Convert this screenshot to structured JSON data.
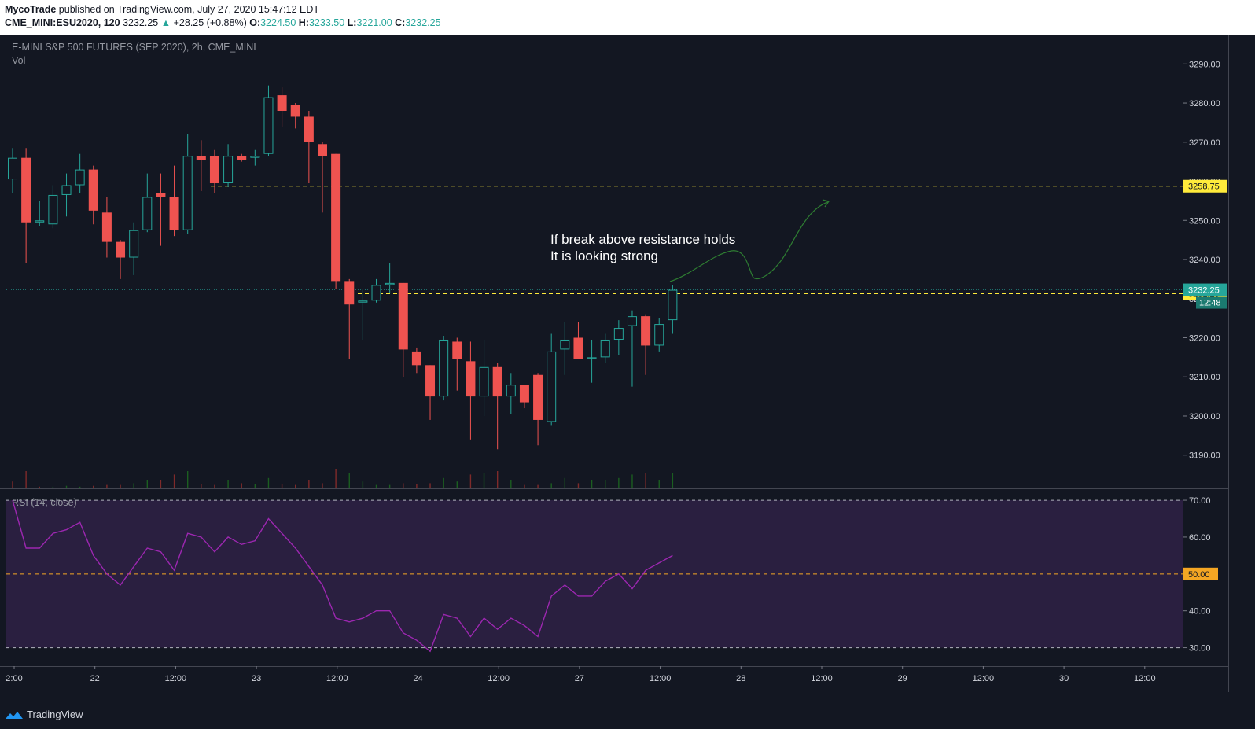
{
  "header": {
    "author": "MycoTrade",
    "published_text": "published on TradingView.com, July 27, 2020 15:47:12 EDT",
    "symbol": "CME_MINI:ESU2020, 120",
    "last": "3232.25",
    "change_arrow": "▲",
    "change": "+28.25 (+0.88%)",
    "o_label": "O:",
    "o": "3224.50",
    "h_label": "H:",
    "h": "3233.50",
    "l_label": "L:",
    "l": "3221.00",
    "c_label": "C:",
    "c": "3232.25"
  },
  "footer": {
    "brand": "TradingView"
  },
  "colors": {
    "background": "#131722",
    "up": "#26a69a",
    "down": "#ef5350",
    "rsi_line": "#9c27b0",
    "rsi_band": "#2a1f40",
    "resistance": "#ffeb3b",
    "annotation_arrow": "#2e7d32"
  },
  "icons": {
    "brand": "tradingview-cloud-icon"
  },
  "chart_data": [
    {
      "type": "candlestick",
      "title": "E-MINI S&P 500 FUTURES (SEP 2020), 2h, CME_MINI",
      "sub_label": "Vol",
      "x_tick_labels": [
        "2:00",
        "22",
        "12:00",
        "23",
        "12:00",
        "24",
        "12:00",
        "27",
        "12:00",
        "28",
        "12:00",
        "29",
        "12:00",
        "30",
        "12:00"
      ],
      "y_ticks": [
        3190,
        3200,
        3210,
        3220,
        3230,
        3240,
        3250,
        3260,
        3270,
        3280,
        3290
      ],
      "y_tick_labels": [
        "3190.00",
        "3200.00",
        "3210.00",
        "3220.00",
        "3230.00",
        "3240.00",
        "3250.00",
        "3260.00",
        "3270.00",
        "3280.00",
        "3290.00"
      ],
      "ylim": [
        3181.5,
        3297.5
      ],
      "candles": [
        {
          "o": 3260.5,
          "h": 3268.5,
          "l": 3257,
          "c": 3266
        },
        {
          "o": 3266,
          "h": 3268.5,
          "l": 3239,
          "c": 3249.5
        },
        {
          "o": 3249.5,
          "h": 3255,
          "l": 3248.5,
          "c": 3250
        },
        {
          "o": 3249,
          "h": 3259,
          "l": 3248,
          "c": 3256.5
        },
        {
          "o": 3256.5,
          "h": 3262,
          "l": 3251,
          "c": 3259
        },
        {
          "o": 3259,
          "h": 3267,
          "l": 3257,
          "c": 3263
        },
        {
          "o": 3263,
          "h": 3264,
          "l": 3249,
          "c": 3252.5
        },
        {
          "o": 3252,
          "h": 3256,
          "l": 3240.5,
          "c": 3244.5
        },
        {
          "o": 3244.5,
          "h": 3245,
          "l": 3235,
          "c": 3240.5
        },
        {
          "o": 3240.5,
          "h": 3249.5,
          "l": 3236,
          "c": 3247.5
        },
        {
          "o": 3247.5,
          "h": 3262,
          "l": 3247,
          "c": 3256
        },
        {
          "o": 3257,
          "h": 3262,
          "l": 3243.5,
          "c": 3256
        },
        {
          "o": 3256,
          "h": 3264,
          "l": 3246,
          "c": 3247.5
        },
        {
          "o": 3247.5,
          "h": 3272,
          "l": 3246.5,
          "c": 3266.5
        },
        {
          "o": 3266.5,
          "h": 3270.5,
          "l": 3257.5,
          "c": 3265.5
        },
        {
          "o": 3266.5,
          "h": 3268,
          "l": 3257,
          "c": 3259.5
        },
        {
          "o": 3259.5,
          "h": 3269.5,
          "l": 3258.5,
          "c": 3266.5
        },
        {
          "o": 3266.5,
          "h": 3267,
          "l": 3265,
          "c": 3265.5
        },
        {
          "o": 3266,
          "h": 3268,
          "l": 3264,
          "c": 3266.5
        },
        {
          "o": 3267,
          "h": 3284.5,
          "l": 3266.5,
          "c": 3281.5
        },
        {
          "o": 3282,
          "h": 3284,
          "l": 3274,
          "c": 3278
        },
        {
          "o": 3279.5,
          "h": 3280,
          "l": 3273.5,
          "c": 3276.5
        },
        {
          "o": 3276.5,
          "h": 3278,
          "l": 3259.5,
          "c": 3270
        },
        {
          "o": 3269.5,
          "h": 3270,
          "l": 3252,
          "c": 3266.5
        },
        {
          "o": 3267,
          "h": 3267,
          "l": 3232.5,
          "c": 3234.5
        },
        {
          "o": 3234.5,
          "h": 3235,
          "l": 3214.5,
          "c": 3228.5
        },
        {
          "o": 3229,
          "h": 3232.5,
          "l": 3219.5,
          "c": 3229.5
        },
        {
          "o": 3229.5,
          "h": 3235,
          "l": 3229,
          "c": 3233.5
        },
        {
          "o": 3233.5,
          "h": 3239,
          "l": 3231.5,
          "c": 3234
        },
        {
          "o": 3234,
          "h": 3234,
          "l": 3210,
          "c": 3217
        },
        {
          "o": 3216.5,
          "h": 3217.5,
          "l": 3211,
          "c": 3213
        },
        {
          "o": 3213,
          "h": 3213,
          "l": 3199,
          "c": 3205
        },
        {
          "o": 3205,
          "h": 3220.5,
          "l": 3204,
          "c": 3219.5
        },
        {
          "o": 3219,
          "h": 3220,
          "l": 3206.5,
          "c": 3214.5
        },
        {
          "o": 3214,
          "h": 3219,
          "l": 3194,
          "c": 3205
        },
        {
          "o": 3205,
          "h": 3219.5,
          "l": 3200,
          "c": 3212.5
        },
        {
          "o": 3212.5,
          "h": 3213.5,
          "l": 3191.5,
          "c": 3205
        },
        {
          "o": 3205,
          "h": 3211,
          "l": 3200.5,
          "c": 3208
        },
        {
          "o": 3208,
          "h": 3208,
          "l": 3202,
          "c": 3203.5
        },
        {
          "o": 3210.5,
          "h": 3211,
          "l": 3192.5,
          "c": 3199
        },
        {
          "o": 3198.5,
          "h": 3221,
          "l": 3197.5,
          "c": 3216.5
        },
        {
          "o": 3217,
          "h": 3224,
          "l": 3210.5,
          "c": 3219.5
        },
        {
          "o": 3220,
          "h": 3224,
          "l": 3214.5,
          "c": 3214.5
        },
        {
          "o": 3215,
          "h": 3219.5,
          "l": 3208.5,
          "c": 3215
        },
        {
          "o": 3215,
          "h": 3221,
          "l": 3213.5,
          "c": 3219.5
        },
        {
          "o": 3219.5,
          "h": 3224.5,
          "l": 3215.5,
          "c": 3222.5
        },
        {
          "o": 3223,
          "h": 3227,
          "l": 3207.5,
          "c": 3225.5
        },
        {
          "o": 3225.5,
          "h": 3226,
          "l": 3210.5,
          "c": 3218
        },
        {
          "o": 3218,
          "h": 3225,
          "l": 3216.5,
          "c": 3223.5
        },
        {
          "o": 3224.5,
          "h": 3233.5,
          "l": 3221,
          "c": 3232.25
        }
      ],
      "volume_up": [
        0,
        0,
        0,
        1,
        1,
        1,
        0,
        0,
        0,
        1,
        1,
        0,
        0,
        1,
        0,
        0,
        1,
        0,
        1,
        1,
        0,
        0,
        0,
        0,
        0,
        1,
        1,
        1,
        1,
        0,
        0,
        0,
        1,
        1,
        0,
        1,
        0,
        1,
        0,
        0,
        1,
        1,
        0,
        1,
        1,
        1,
        1,
        0,
        1,
        1
      ],
      "volume": [
        8,
        20,
        2,
        2,
        3,
        2,
        3,
        4,
        4,
        6,
        10,
        10,
        16,
        20,
        5,
        4,
        10,
        6,
        5,
        12,
        5,
        4,
        10,
        6,
        22,
        18,
        8,
        4,
        4,
        6,
        5,
        6,
        12,
        8,
        16,
        18,
        20,
        10,
        4,
        4,
        6,
        12,
        6,
        10,
        10,
        12,
        16,
        18,
        10,
        18
      ],
      "volume_max": 100,
      "horizontal_lines": [
        {
          "value": 3258.75,
          "label": "3258.75",
          "style": "dashed-yellow"
        },
        {
          "value": 3231.25,
          "label": "3231.25",
          "style": "dashed-yellow"
        }
      ],
      "last_price": {
        "value": 3232.25,
        "label": "3232.25",
        "countdown": "12:48"
      },
      "annotation": {
        "lines": [
          "If break above resistance holds",
          "It is looking strong"
        ]
      }
    },
    {
      "type": "line",
      "title": "RSI (14, close)",
      "y_ticks": [
        30,
        40,
        50,
        60,
        70
      ],
      "y_tick_labels": [
        "30.00",
        "40.00",
        "50.00",
        "60.00",
        "70.00"
      ],
      "ylim": [
        25,
        73
      ],
      "band": [
        30,
        70
      ],
      "midline": {
        "value": 50,
        "label": "50.00"
      },
      "series": [
        {
          "values": [
            70,
            57,
            57,
            61,
            62,
            64,
            55,
            50,
            47,
            52,
            57,
            56,
            51,
            61,
            60,
            56,
            60,
            58,
            59,
            65,
            61,
            57,
            52,
            47,
            38,
            37,
            38,
            40,
            40,
            34,
            32,
            29,
            39,
            38,
            33,
            38,
            35,
            38,
            36,
            33,
            44,
            47,
            44,
            44,
            48,
            50,
            46,
            51,
            53,
            55
          ]
        }
      ]
    }
  ]
}
